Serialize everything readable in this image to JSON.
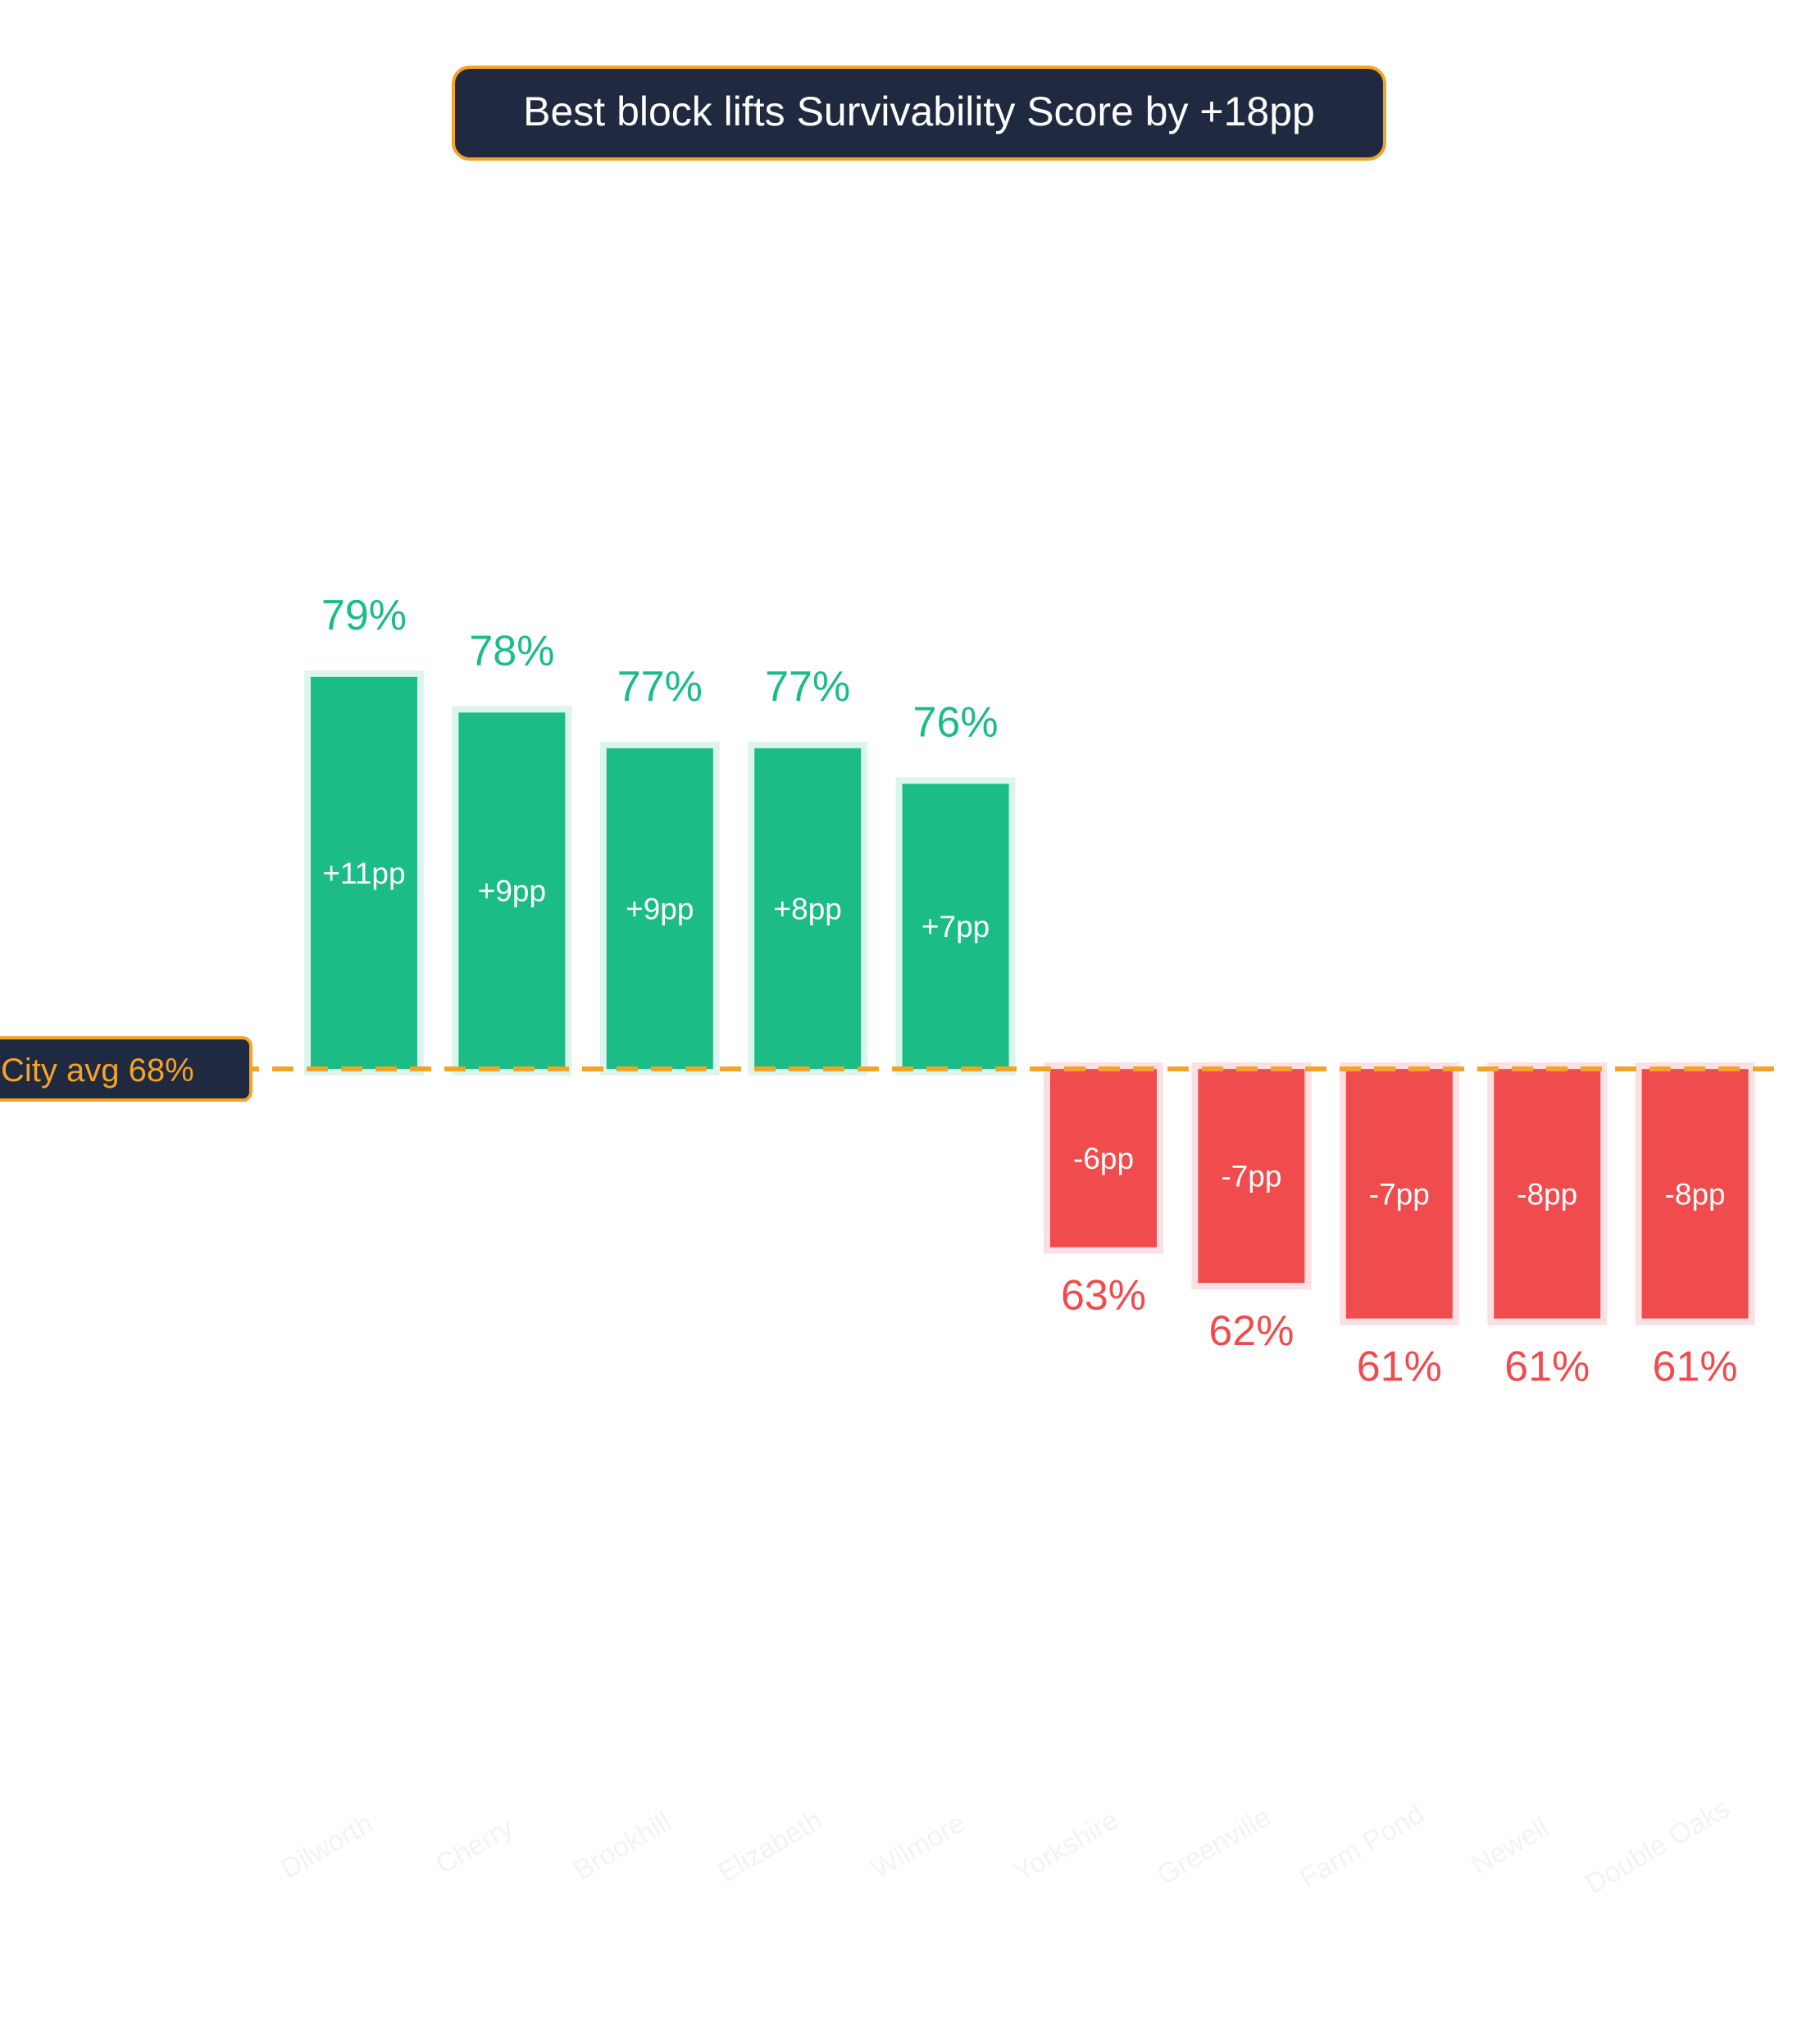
{
  "chart_data": {
    "type": "bar",
    "title": "Best block lifts Survivability Score by +18pp",
    "baseline": {
      "label": "City avg  68%",
      "value": 68
    },
    "categories": [
      "Dilworth",
      "Cherry",
      "Brookhill",
      "Elizabeth",
      "Wilmore",
      "Yorkshire",
      "Greenville",
      "Farm Pond",
      "Newell",
      "Double Oaks"
    ],
    "values": [
      79,
      78,
      77,
      77,
      76,
      63,
      62,
      61,
      61,
      61
    ],
    "value_labels": [
      "79%",
      "78%",
      "77%",
      "77%",
      "76%",
      "63%",
      "62%",
      "61%",
      "61%",
      "61%"
    ],
    "delta_values": [
      11,
      9,
      9,
      8,
      7,
      -6,
      -7,
      -7,
      -8,
      -8
    ],
    "delta_labels": [
      "+11pp",
      "+9pp",
      "+9pp",
      "+8pp",
      "+7pp",
      "-6pp",
      "-7pp",
      "-7pp",
      "-8pp",
      "-8pp"
    ],
    "ylim": [
      52,
      95
    ],
    "grid": false,
    "legend": "none",
    "colors": {
      "positive": "#1cbc86",
      "positive_halo": "#dcf6ed",
      "negative": "#f04c4e",
      "negative_halo": "#fde0e3",
      "accent": "#f4a324",
      "title_box": "#1f2a40",
      "title_text": "#ffffff",
      "category_label": "#f2f3f5",
      "delta_text": "#ffffff"
    }
  }
}
